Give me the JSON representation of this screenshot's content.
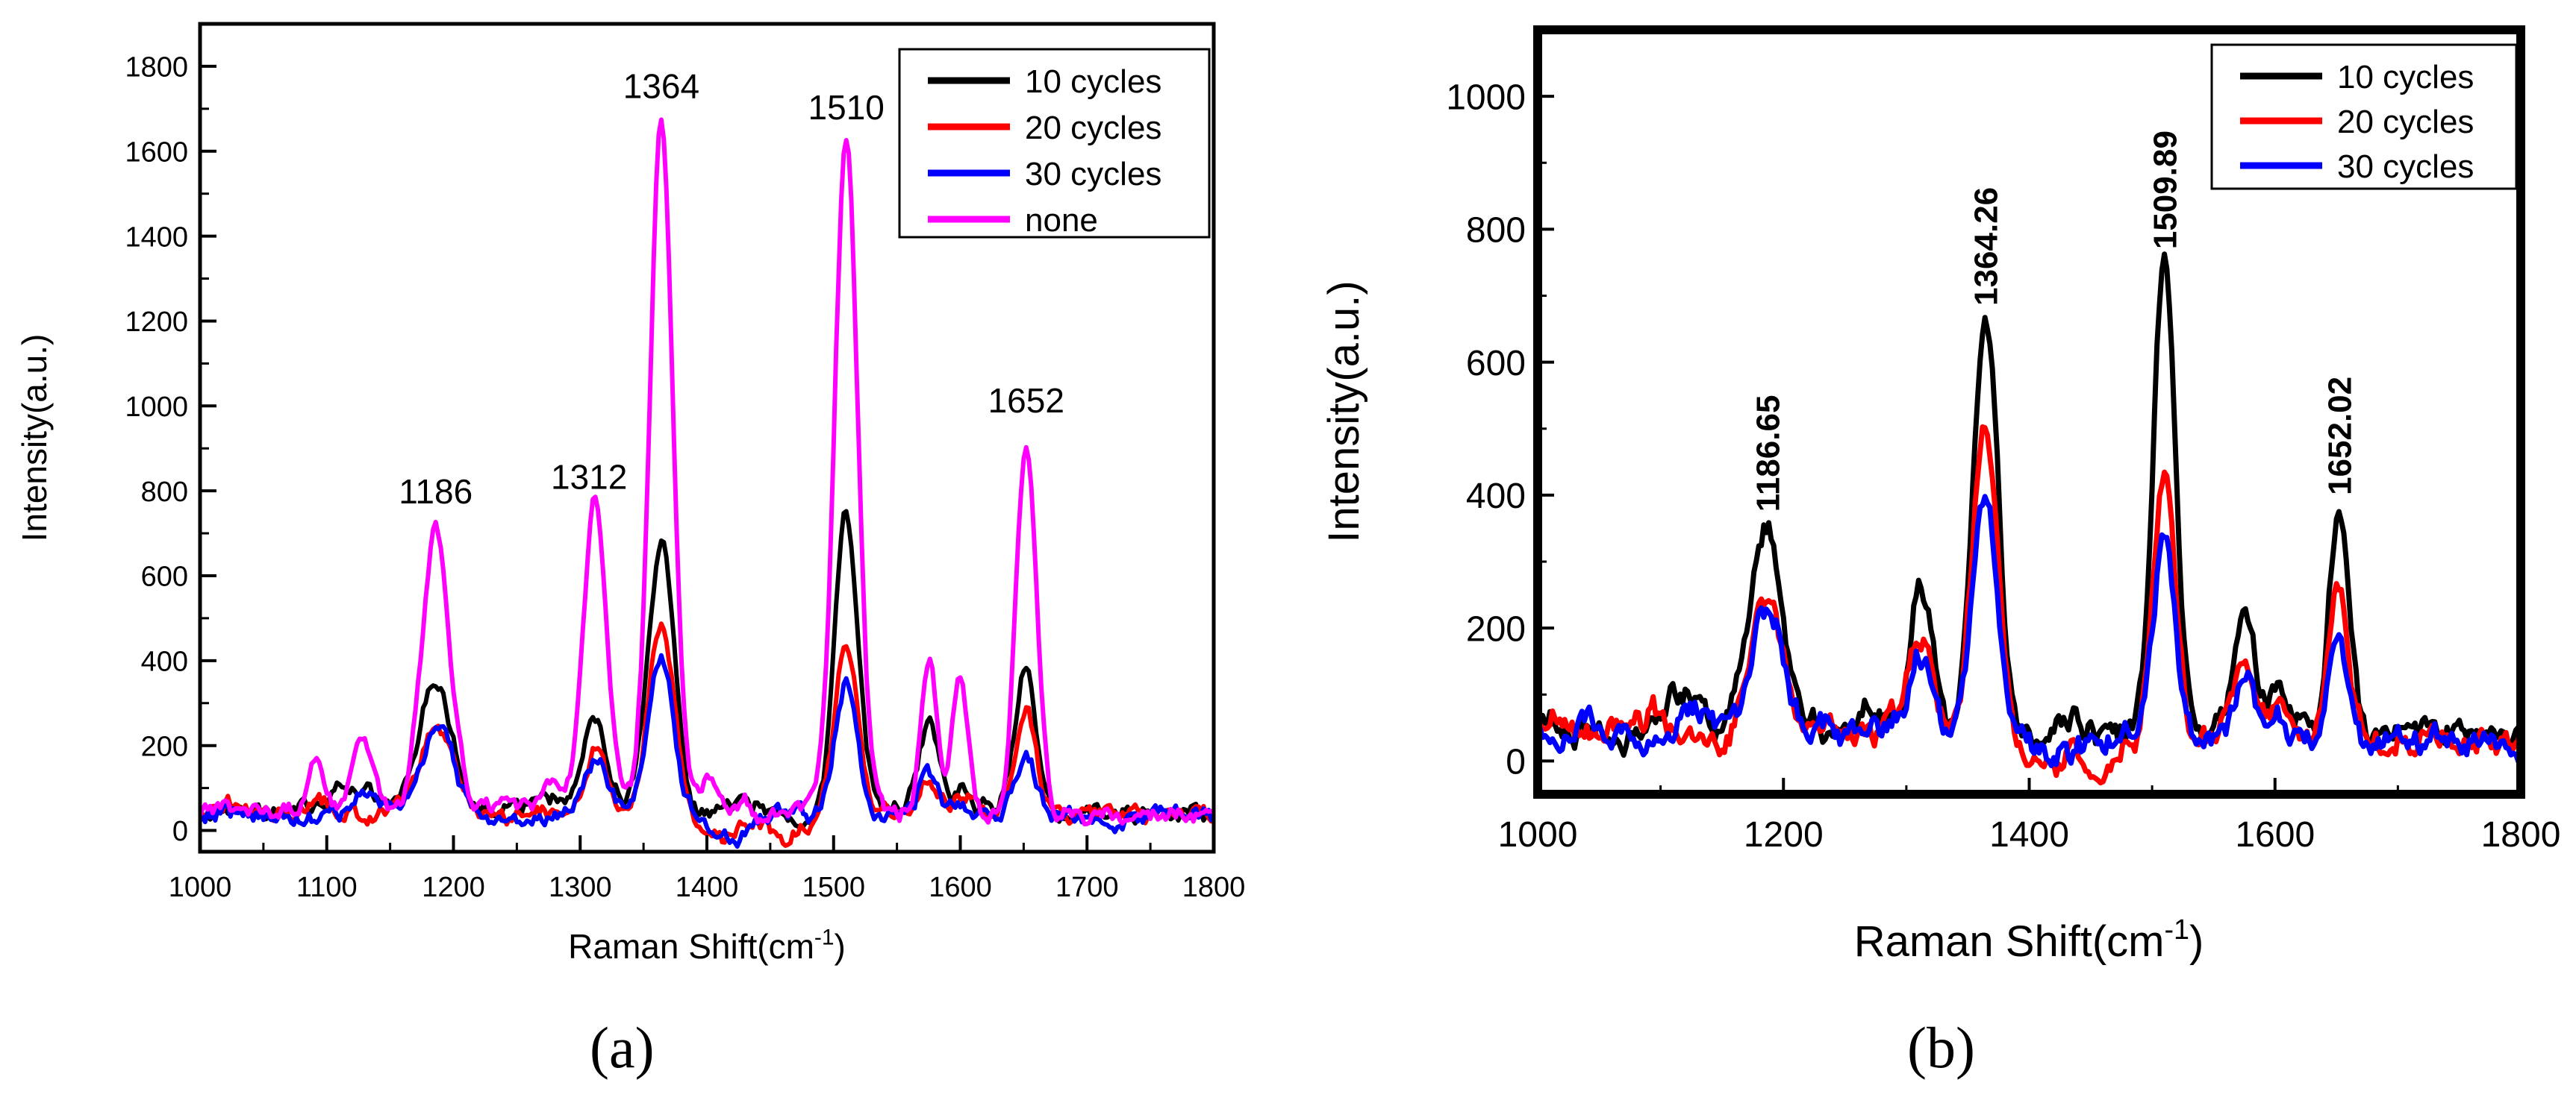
{
  "figure": {
    "panel_a_label": "(a)",
    "panel_b_label": "(b)"
  },
  "chart_data": [
    {
      "id": "a",
      "type": "line",
      "xlabel": "Raman Shift(cm",
      "xlabel_sup": "-1",
      "xlabel_close": ")",
      "ylabel": "Intensity(a.u.)",
      "xlim": [
        1000,
        1800
      ],
      "ylim": [
        -50,
        1900
      ],
      "xticks": [
        "1000",
        "1100",
        "1200",
        "1300",
        "1400",
        "1500",
        "1600",
        "1700",
        "1800"
      ],
      "yticks": [
        "0",
        "200",
        "400",
        "600",
        "800",
        "1000",
        "1200",
        "1400",
        "1600",
        "1800"
      ],
      "legend": {
        "position": "top-right",
        "entries": [
          "10 cycles",
          "20 cycles",
          "30 cycles",
          "none"
        ]
      },
      "series": [
        {
          "name": "10 cycles",
          "color": "#000000",
          "baseline": [
            [
              1000,
              40
            ],
            [
              1100,
              50
            ],
            [
              1200,
              50
            ],
            [
              1300,
              60
            ],
            [
              1400,
              40
            ],
            [
              1500,
              40
            ],
            [
              1600,
              60
            ],
            [
              1700,
              40
            ],
            [
              1800,
              40
            ]
          ],
          "peaks": [
            [
              1025,
              15,
              18
            ],
            [
              1060,
              -20,
              8
            ],
            [
              1120,
              45,
              14
            ],
            [
              1186,
              300,
              13
            ],
            [
              1270,
              25,
              10
            ],
            [
              1312,
              200,
              9
            ],
            [
              1364,
              625,
              10
            ],
            [
              1430,
              20,
              10
            ],
            [
              1510,
              700,
              9
            ],
            [
              1575,
              190,
              8
            ],
            [
              1600,
              55,
              6
            ],
            [
              1652,
              330,
              8
            ]
          ]
        },
        {
          "name": "20 cycles",
          "color": "#ff0000",
          "baseline": [
            [
              1000,
              40
            ],
            [
              1100,
              40
            ],
            [
              1200,
              40
            ],
            [
              1300,
              50
            ],
            [
              1400,
              30
            ],
            [
              1500,
              30
            ],
            [
              1600,
              50
            ],
            [
              1700,
              30
            ],
            [
              1800,
              35
            ]
          ],
          "peaks": [
            [
              1020,
              35,
              8
            ],
            [
              1095,
              40,
              7
            ],
            [
              1186,
              205,
              13
            ],
            [
              1312,
              150,
              9
            ],
            [
              1364,
              470,
              10
            ],
            [
              1410,
              -40,
              14
            ],
            [
              1460,
              -45,
              10
            ],
            [
              1510,
              405,
              9
            ],
            [
              1575,
              85,
              8
            ],
            [
              1600,
              30,
              6
            ],
            [
              1652,
              230,
              8
            ]
          ]
        },
        {
          "name": "30 cycles",
          "color": "#0000ff",
          "baseline": [
            [
              1000,
              35
            ],
            [
              1100,
              30
            ],
            [
              1200,
              40
            ],
            [
              1300,
              40
            ],
            [
              1400,
              30
            ],
            [
              1500,
              30
            ],
            [
              1600,
              40
            ],
            [
              1700,
              30
            ],
            [
              1800,
              35
            ]
          ],
          "peaks": [
            [
              1040,
              20,
              8
            ],
            [
              1130,
              55,
              12
            ],
            [
              1186,
              190,
              13
            ],
            [
              1312,
              120,
              9
            ],
            [
              1364,
              360,
              10
            ],
            [
              1420,
              -35,
              10
            ],
            [
              1470,
              15,
              8
            ],
            [
              1510,
              310,
              9
            ],
            [
              1575,
              95,
              8
            ],
            [
              1600,
              30,
              6
            ],
            [
              1652,
              155,
              8
            ]
          ]
        },
        {
          "name": "none",
          "color": "#ff00ff",
          "baseline": [
            [
              1000,
              50
            ],
            [
              1100,
              45
            ],
            [
              1200,
              50
            ],
            [
              1300,
              60
            ],
            [
              1400,
              45
            ],
            [
              1500,
              45
            ],
            [
              1600,
              50
            ],
            [
              1700,
              40
            ],
            [
              1800,
              40
            ]
          ],
          "peaks": [
            [
              1090,
              110,
              6
            ],
            [
              1128,
              175,
              8
            ],
            [
              1186,
              665,
              11
            ],
            [
              1280,
              60,
              8
            ],
            [
              1312,
              710,
              9
            ],
            [
              1364,
              1620,
              9
            ],
            [
              1400,
              60,
              8
            ],
            [
              1430,
              40,
              6
            ],
            [
              1510,
              1580,
              9
            ],
            [
              1575,
              370,
              6
            ],
            [
              1600,
              300,
              6
            ],
            [
              1652,
              880,
              8
            ]
          ]
        }
      ],
      "annotations": [
        {
          "text": "1186",
          "x": 1186,
          "y": 770
        },
        {
          "text": "1312",
          "x": 1307,
          "y": 805
        },
        {
          "text": "1364",
          "x": 1364,
          "y": 1725
        },
        {
          "text": "1510",
          "x": 1510,
          "y": 1675
        },
        {
          "text": "1652",
          "x": 1652,
          "y": 985
        }
      ]
    },
    {
      "id": "b",
      "type": "line",
      "xlabel": "Raman Shift(cm",
      "xlabel_sup": "-1",
      "xlabel_close": ")",
      "ylabel": "Intensity(a.u.)",
      "xlim": [
        1000,
        1800
      ],
      "ylim": [
        -50,
        1100
      ],
      "xticks": [
        "1000",
        "1200",
        "1400",
        "1600",
        "1800"
      ],
      "yticks": [
        "0",
        "200",
        "400",
        "600",
        "800",
        "1000"
      ],
      "legend": {
        "position": "top-right",
        "entries": [
          "10 cycles",
          "20 cycles",
          "30 cycles"
        ]
      },
      "series": [
        {
          "name": "10 cycles",
          "color": "#000000",
          "baseline": [
            [
              1000,
              40
            ],
            [
              1100,
              50
            ],
            [
              1200,
              50
            ],
            [
              1300,
              60
            ],
            [
              1400,
              40
            ],
            [
              1500,
              40
            ],
            [
              1600,
              60
            ],
            [
              1700,
              40
            ],
            [
              1800,
              40
            ]
          ],
          "peaks": [
            [
              1025,
              15,
              18
            ],
            [
              1060,
              -20,
              8
            ],
            [
              1120,
              45,
              14
            ],
            [
              1186,
              300,
              13
            ],
            [
              1270,
              25,
              10
            ],
            [
              1312,
              200,
              9
            ],
            [
              1364,
              625,
              10
            ],
            [
              1430,
              20,
              10
            ],
            [
              1510,
              700,
              9
            ],
            [
              1575,
              190,
              8
            ],
            [
              1600,
              55,
              6
            ],
            [
              1652,
              330,
              8
            ]
          ]
        },
        {
          "name": "20 cycles",
          "color": "#ff0000",
          "baseline": [
            [
              1000,
              40
            ],
            [
              1100,
              40
            ],
            [
              1200,
              40
            ],
            [
              1300,
              50
            ],
            [
              1400,
              30
            ],
            [
              1500,
              30
            ],
            [
              1600,
              50
            ],
            [
              1700,
              30
            ],
            [
              1800,
              35
            ]
          ],
          "peaks": [
            [
              1020,
              35,
              8
            ],
            [
              1095,
              40,
              7
            ],
            [
              1186,
              205,
              13
            ],
            [
              1312,
              150,
              9
            ],
            [
              1364,
              470,
              10
            ],
            [
              1410,
              -40,
              14
            ],
            [
              1460,
              -45,
              10
            ],
            [
              1510,
              405,
              9
            ],
            [
              1575,
              85,
              8
            ],
            [
              1600,
              30,
              6
            ],
            [
              1652,
              230,
              8
            ]
          ]
        },
        {
          "name": "30 cycles",
          "color": "#0000ff",
          "baseline": [
            [
              1000,
              35
            ],
            [
              1100,
              30
            ],
            [
              1200,
              40
            ],
            [
              1300,
              40
            ],
            [
              1400,
              30
            ],
            [
              1500,
              30
            ],
            [
              1600,
              40
            ],
            [
              1700,
              30
            ],
            [
              1800,
              35
            ]
          ],
          "peaks": [
            [
              1040,
              20,
              8
            ],
            [
              1130,
              55,
              12
            ],
            [
              1186,
              190,
              13
            ],
            [
              1312,
              120,
              9
            ],
            [
              1364,
              360,
              10
            ],
            [
              1420,
              -35,
              10
            ],
            [
              1470,
              15,
              8
            ],
            [
              1510,
              310,
              9
            ],
            [
              1575,
              95,
              8
            ],
            [
              1600,
              30,
              6
            ],
            [
              1652,
              155,
              8
            ]
          ]
        }
      ],
      "annotations": [
        {
          "text": "1186.65",
          "x": 1186.65,
          "y": 375
        },
        {
          "text": "1364.26",
          "x": 1364.26,
          "y": 685
        },
        {
          "text": "1509.89",
          "x": 1509.89,
          "y": 770
        },
        {
          "text": "1652.02",
          "x": 1652.02,
          "y": 400
        }
      ]
    }
  ]
}
